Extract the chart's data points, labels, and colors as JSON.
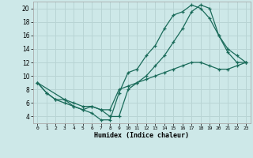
{
  "xlabel": "Humidex (Indice chaleur)",
  "background_color": "#cde8e8",
  "grid_color": "#b8d4d4",
  "line_color": "#1a6b5a",
  "xlim": [
    -0.5,
    23.5
  ],
  "ylim": [
    3.0,
    21.0
  ],
  "xticks": [
    0,
    1,
    2,
    3,
    4,
    5,
    6,
    7,
    8,
    9,
    10,
    11,
    12,
    13,
    14,
    15,
    16,
    17,
    18,
    19,
    20,
    21,
    22,
    23
  ],
  "yticks": [
    4,
    6,
    8,
    10,
    12,
    14,
    16,
    18,
    20
  ],
  "line1_x": [
    0,
    1,
    2,
    3,
    4,
    5,
    6,
    7,
    8,
    9,
    10,
    11,
    12,
    13,
    14,
    15,
    16,
    17,
    18,
    19,
    20,
    21,
    22,
    23
  ],
  "line1_y": [
    9.0,
    7.5,
    6.5,
    6.0,
    5.5,
    5.0,
    4.5,
    3.5,
    3.5,
    7.5,
    10.5,
    11.0,
    13.0,
    14.5,
    17.0,
    19.0,
    19.5,
    20.5,
    20.0,
    18.5,
    16.0,
    13.5,
    12.0,
    12.0
  ],
  "line2_x": [
    0,
    1,
    2,
    3,
    4,
    5,
    6,
    7,
    8,
    9,
    10,
    11,
    12,
    13,
    14,
    15,
    16,
    17,
    18,
    19,
    20,
    21,
    22,
    23
  ],
  "line2_y": [
    9.0,
    7.5,
    6.5,
    6.5,
    6.0,
    5.5,
    5.5,
    5.0,
    5.0,
    8.0,
    8.5,
    9.0,
    9.5,
    10.0,
    10.5,
    11.0,
    11.5,
    12.0,
    12.0,
    11.5,
    11.0,
    11.0,
    11.5,
    12.0
  ],
  "line3_x": [
    0,
    3,
    4,
    5,
    6,
    7,
    8,
    9,
    10,
    11,
    12,
    13,
    14,
    15,
    16,
    17,
    18,
    19,
    20,
    21,
    22,
    23
  ],
  "line3_y": [
    9.0,
    6.5,
    5.5,
    5.0,
    5.5,
    5.0,
    4.0,
    4.0,
    8.0,
    9.0,
    10.0,
    11.5,
    13.0,
    15.0,
    17.0,
    19.5,
    20.5,
    20.0,
    16.0,
    14.0,
    13.0,
    12.0
  ]
}
